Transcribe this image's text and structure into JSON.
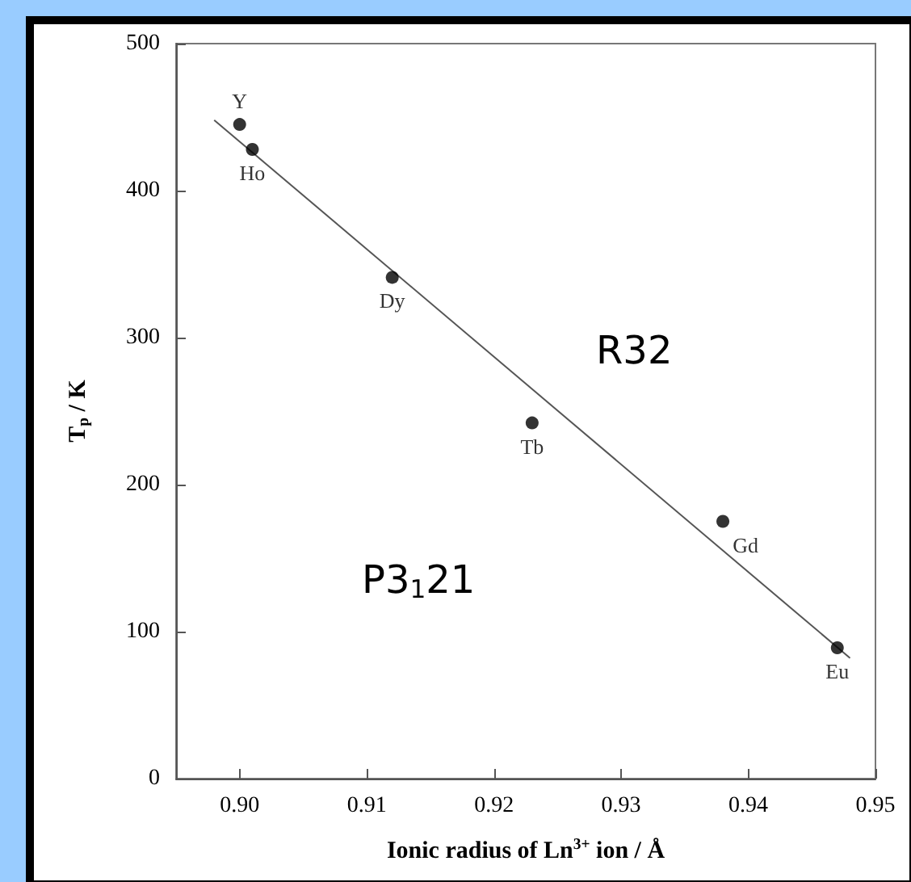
{
  "chart_data": {
    "type": "scatter",
    "xlabel": "Ionic radius of Ln$^{3+}$ ion / Å",
    "ylabel": "T$_{p}$ / K",
    "xlim": [
      0.895,
      0.95
    ],
    "xticks": [
      {
        "value": 0.9,
        "label": "0.90"
      },
      {
        "value": 0.91,
        "label": "0.91"
      },
      {
        "value": 0.92,
        "label": "0.92"
      },
      {
        "value": 0.93,
        "label": "0.93"
      },
      {
        "value": 0.94,
        "label": "0.94"
      },
      {
        "value": 0.95,
        "label": "0.95"
      }
    ],
    "ylim": [
      0,
      500
    ],
    "yticks": [
      0,
      100,
      200,
      300,
      400,
      500
    ],
    "grid": false,
    "marker": "circle",
    "series": [
      {
        "color": "#000000",
        "x": [
          0.9,
          0.901,
          0.912,
          0.923,
          0.938,
          0.947
        ],
        "values": [
          445,
          428,
          341,
          242,
          175,
          89
        ]
      },
      {
        "type": "line",
        "color": "#555555",
        "x": [
          0.898,
          0.948
        ],
        "values": [
          448,
          82
        ],
        "line_style": "solid",
        "marker": "none"
      }
    ],
    "annotations": [
      {
        "text": "Y",
        "x": 0.9,
        "y": 445
      },
      {
        "text": "Ho",
        "x": 0.901,
        "y": 428
      },
      {
        "text": "Dy",
        "x": 0.912,
        "y": 341
      },
      {
        "text": "Tb",
        "x": 0.923,
        "y": 242
      },
      {
        "text": "Gd",
        "x": 0.938,
        "y": 175
      },
      {
        "text": "Eu",
        "x": 0.947,
        "y": 89
      },
      "R32",
      "P3$_{1}$21"
    ]
  }
}
